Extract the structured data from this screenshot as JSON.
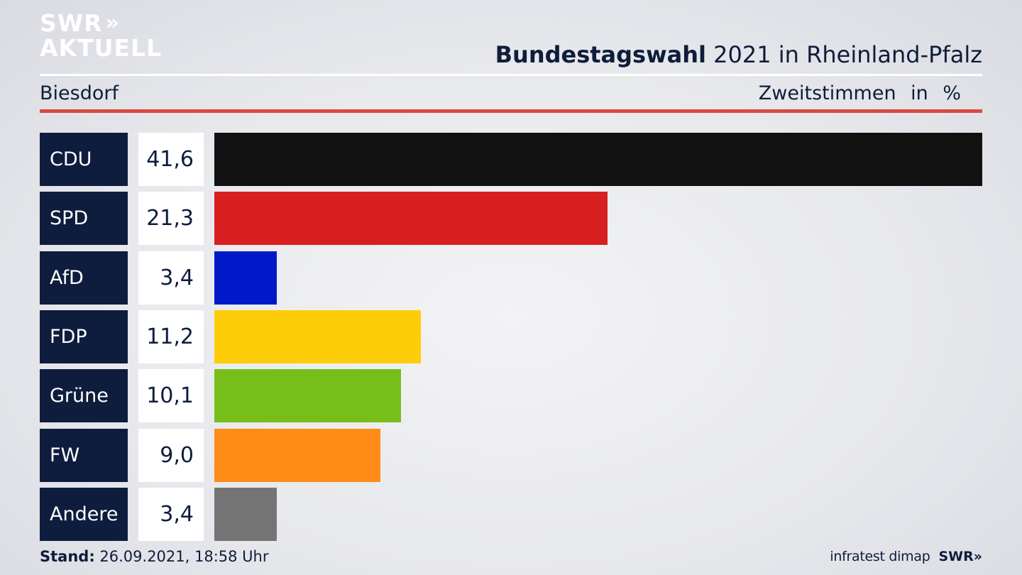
{
  "logo": {
    "line1": "SWR",
    "arrows": "»",
    "line2": "AKTUELL"
  },
  "header": {
    "title_bold": "Bundestagswahl",
    "title_rest": " 2021 in Rheinland-Pfalz",
    "region": "Biesdorf",
    "measure": "Zweitstimmen in %"
  },
  "chart_data": {
    "type": "bar",
    "orientation": "horizontal",
    "title": "Bundestagswahl 2021 in Rheinland-Pfalz",
    "subtitle": "Biesdorf",
    "unit": "Zweitstimmen in %",
    "categories": [
      "CDU",
      "SPD",
      "AfD",
      "FDP",
      "Grüne",
      "FW",
      "Andere"
    ],
    "value_labels": [
      "41,6",
      "21,3",
      "3,4",
      "11,2",
      "10,1",
      "9,0",
      "3,4"
    ],
    "values": [
      41.6,
      21.3,
      3.4,
      11.2,
      10.1,
      9.0,
      3.4
    ],
    "colors": [
      "#111111",
      "#d81f1f",
      "#0019c8",
      "#fdcd09",
      "#78be1b",
      "#ff8c17",
      "#747474"
    ],
    "xlim": [
      0,
      41.6
    ],
    "grid": false,
    "legend": "none"
  },
  "footer": {
    "stand_label": "Stand:",
    "stand_value": " 26.09.2021, 18:58 Uhr",
    "source": "infratest dimap",
    "brand": "SWR»"
  }
}
